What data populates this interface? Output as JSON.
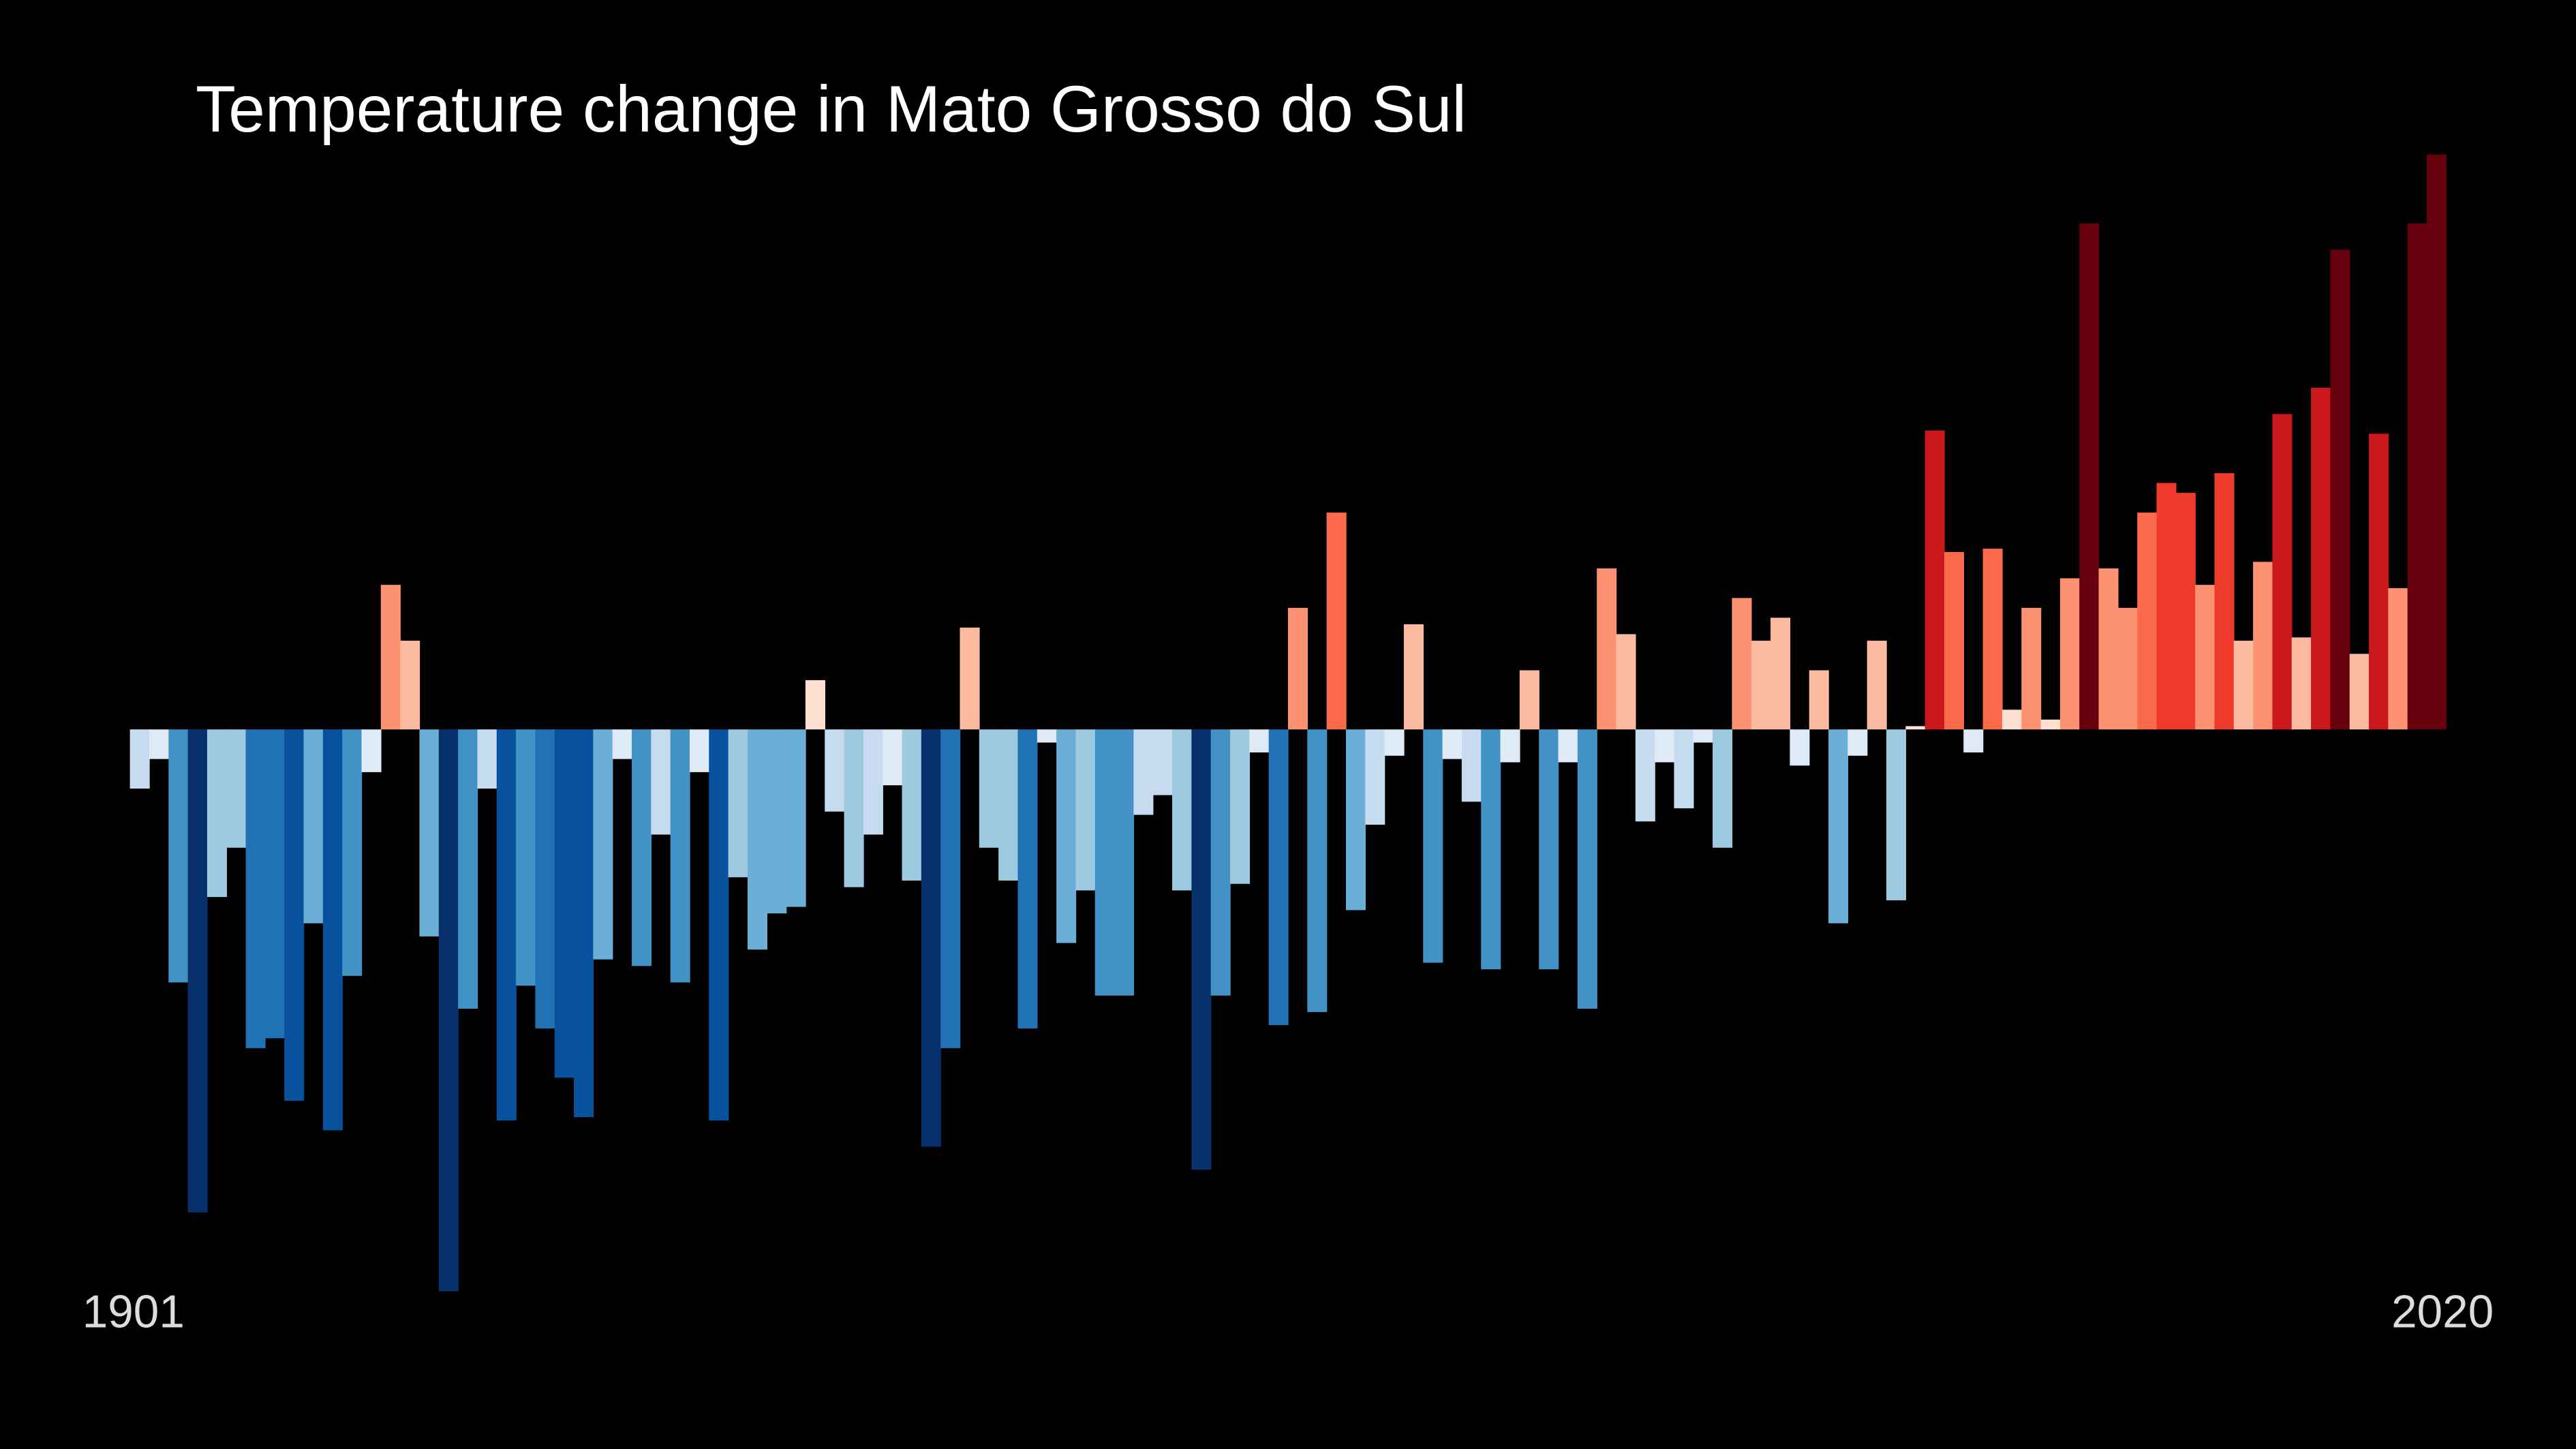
{
  "chart_data": {
    "type": "bar",
    "title": "Temperature change in Mato Grosso do Sul",
    "categories": [
      "1901",
      null,
      null,
      null,
      null,
      null,
      null,
      null,
      null,
      null,
      null,
      null,
      null,
      null,
      null,
      null,
      null,
      null,
      null,
      null,
      null,
      null,
      null,
      null,
      null,
      null,
      null,
      null,
      null,
      null,
      null,
      null,
      null,
      null,
      null,
      null,
      null,
      null,
      null,
      null,
      null,
      null,
      null,
      null,
      null,
      null,
      null,
      null,
      null,
      null,
      null,
      null,
      null,
      null,
      null,
      null,
      null,
      null,
      null,
      null,
      null,
      null,
      null,
      null,
      null,
      null,
      null,
      null,
      null,
      null,
      null,
      null,
      null,
      null,
      null,
      null,
      null,
      null,
      null,
      null,
      null,
      null,
      null,
      null,
      null,
      null,
      null,
      null,
      null,
      null,
      null,
      null,
      null,
      null,
      null,
      null,
      null,
      null,
      null,
      null,
      null,
      null,
      null,
      null,
      null,
      null,
      null,
      null,
      null,
      null,
      null,
      null,
      null,
      null,
      null,
      null,
      null,
      null,
      null,
      "2020"
    ],
    "values": [
      -0.18,
      -0.09,
      -0.77,
      -1.47,
      -0.51,
      -0.36,
      -0.97,
      -0.94,
      -1.13,
      -0.59,
      -1.22,
      -0.75,
      -0.13,
      0.44,
      0.27,
      -0.63,
      -1.71,
      -0.85,
      -0.18,
      -1.19,
      -0.78,
      -0.91,
      -1.06,
      -1.18,
      -0.7,
      -0.09,
      -0.72,
      -0.32,
      -0.77,
      -0.13,
      -1.19,
      -0.45,
      -0.67,
      -0.56,
      -0.54,
      0.15,
      -0.25,
      -0.48,
      -0.32,
      -0.17,
      -0.46,
      -1.27,
      -0.97,
      0.31,
      -0.36,
      -0.46,
      -0.91,
      -0.04,
      -0.65,
      -0.49,
      -0.81,
      -0.81,
      -0.26,
      -0.2,
      -0.49,
      -1.34,
      -0.81,
      -0.47,
      -0.07,
      -0.9,
      0.37,
      -0.86,
      0.66,
      -0.55,
      -0.29,
      -0.08,
      0.32,
      -0.71,
      -0.09,
      -0.22,
      -0.73,
      -0.1,
      0.18,
      -0.73,
      -0.1,
      -0.85,
      0.49,
      0.29,
      -0.28,
      -0.1,
      -0.24,
      -0.04,
      -0.36,
      0.4,
      0.27,
      0.34,
      -0.11,
      0.18,
      -0.59,
      -0.08,
      0.27,
      -0.52,
      0.01,
      0.91,
      0.54,
      -0.07,
      0.55,
      0.06,
      0.37,
      0.03,
      0.46,
      1.54,
      0.49,
      0.37,
      0.66,
      0.75,
      0.72,
      0.44,
      0.78,
      0.27,
      0.51,
      0.96,
      0.28,
      1.04,
      1.46,
      0.23,
      0.9,
      0.43,
      1.54,
      1.75
    ],
    "ylim": [
      -1.8,
      1.8
    ],
    "colormap": [
      "#08306b",
      "#08519c",
      "#2171b5",
      "#4292c6",
      "#6baed6",
      "#9ecae1",
      "#c6dbef",
      "#deebf7",
      "#fee0d2",
      "#fcbba1",
      "#fc9272",
      "#fb6a4a",
      "#ef3b2c",
      "#cb181d",
      "#a50f15",
      "#67000d"
    ],
    "color_range": [
      -1.4,
      1.4
    ]
  }
}
